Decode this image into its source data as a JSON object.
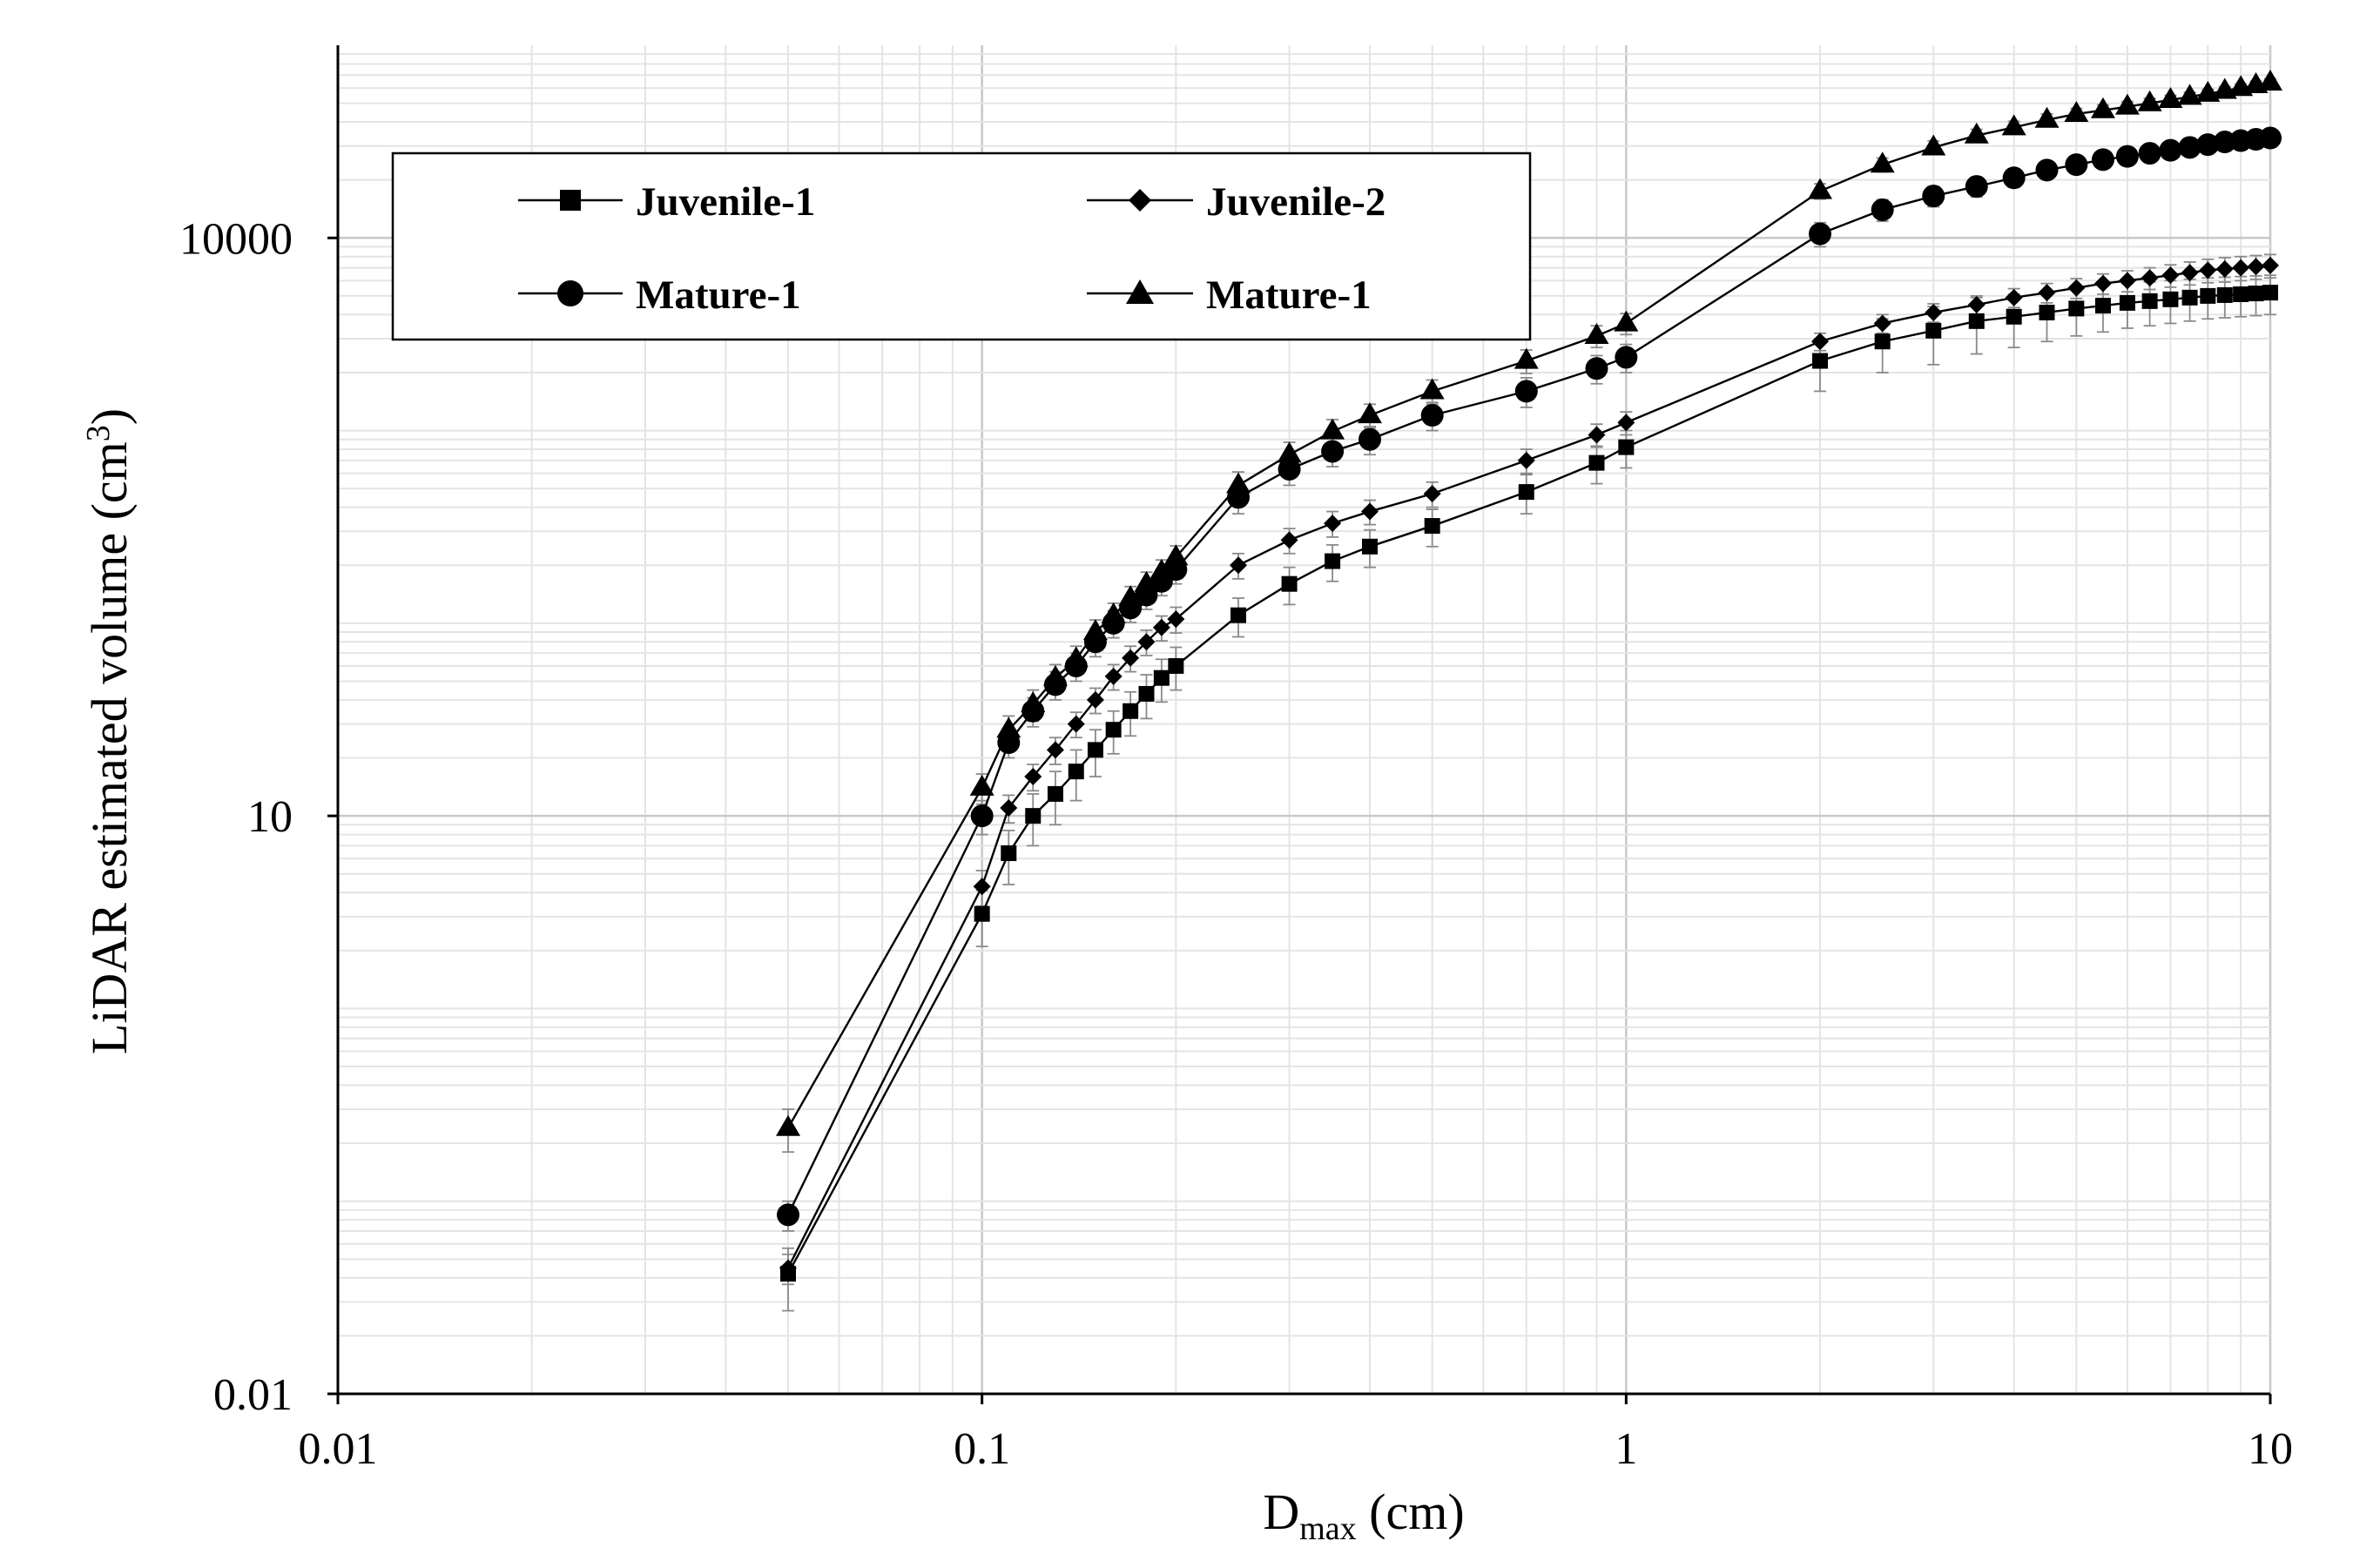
{
  "chart_data": {
    "type": "line",
    "xscale": "log",
    "yscale": "log",
    "xlim": [
      0.01,
      10
    ],
    "ylim": [
      0.01,
      100000
    ],
    "grid": true,
    "title": "",
    "xlabel_main": "D",
    "xlabel_sub": "max",
    "xlabel_rest": " (cm)",
    "ylabel_main": "LiDAR  estimated volume (cm",
    "ylabel_sup": "3",
    "ylabel_rest": ")",
    "x_ticks": [
      {
        "value": 0.01,
        "label": "0.01"
      },
      {
        "value": 0.1,
        "label": "0.1"
      },
      {
        "value": 1,
        "label": "1"
      },
      {
        "value": 10,
        "label": "10"
      }
    ],
    "y_ticks": [
      {
        "value": 0.01,
        "label": "0.01"
      },
      {
        "value": 10,
        "label": "10"
      },
      {
        "value": 10000,
        "label": "10000"
      }
    ],
    "legend_position": "top-left",
    "series": [
      {
        "name": "Juvenile-1",
        "marker": "square",
        "x": [
          0.05,
          0.1,
          0.11,
          0.12,
          0.13,
          0.14,
          0.15,
          0.16,
          0.17,
          0.18,
          0.19,
          0.2,
          0.25,
          0.3,
          0.35,
          0.4,
          0.5,
          0.7,
          0.9,
          1,
          2,
          2.5,
          3,
          3.5,
          4,
          4.5,
          5,
          5.5,
          6,
          6.5,
          7,
          7.5,
          8,
          8.5,
          9,
          9.5,
          10
        ],
        "y": [
          0.042,
          3.1,
          6.4,
          10,
          13,
          17,
          22,
          28,
          35,
          43,
          52,
          60,
          110,
          160,
          210,
          250,
          320,
          480,
          680,
          820,
          2300,
          2900,
          3300,
          3700,
          3900,
          4100,
          4300,
          4450,
          4600,
          4700,
          4800,
          4900,
          5000,
          5050,
          5100,
          5150,
          5200
        ],
        "err": [
          0.015,
          1.0,
          2.0,
          3.0,
          4.0,
          5.0,
          6.0,
          7.0,
          9.0,
          11,
          13,
          15,
          25,
          35,
          45,
          55,
          70,
          110,
          150,
          180,
          700,
          900,
          1100,
          1200,
          1200,
          1200,
          1200,
          1200,
          1200,
          1200,
          1200,
          1200,
          1200,
          1200,
          1200,
          1200,
          1200
        ]
      },
      {
        "name": "Juvenile-2",
        "marker": "diamond",
        "x": [
          0.05,
          0.1,
          0.11,
          0.12,
          0.13,
          0.14,
          0.15,
          0.16,
          0.17,
          0.18,
          0.19,
          0.2,
          0.25,
          0.3,
          0.35,
          0.4,
          0.5,
          0.7,
          0.9,
          1,
          2,
          2.5,
          3,
          3.5,
          4,
          4.5,
          5,
          5.5,
          6,
          6.5,
          7,
          7.5,
          8,
          8.5,
          9,
          9.5,
          10
        ],
        "y": [
          0.045,
          4.3,
          11,
          16,
          22,
          30,
          40,
          53,
          66,
          80,
          95,
          105,
          200,
          270,
          330,
          380,
          470,
          700,
          950,
          1100,
          2900,
          3600,
          4100,
          4500,
          4900,
          5200,
          5500,
          5800,
          6000,
          6200,
          6400,
          6600,
          6800,
          6900,
          7000,
          7100,
          7200
        ],
        "err": [
          0.008,
          0.9,
          1.8,
          2.5,
          3.5,
          4.5,
          6,
          8,
          10,
          12,
          14,
          16,
          30,
          40,
          50,
          55,
          70,
          100,
          130,
          150,
          300,
          400,
          450,
          500,
          550,
          600,
          650,
          700,
          750,
          800,
          850,
          900,
          950,
          1000,
          1000,
          1000,
          1000
        ]
      },
      {
        "name": "Mature-1",
        "marker": "circle",
        "x": [
          0.05,
          0.1,
          0.11,
          0.12,
          0.13,
          0.14,
          0.15,
          0.16,
          0.17,
          0.18,
          0.19,
          0.2,
          0.25,
          0.3,
          0.35,
          0.4,
          0.5,
          0.7,
          0.9,
          1,
          2,
          2.5,
          3,
          3.5,
          4,
          4.5,
          5,
          5.5,
          6,
          6.5,
          7,
          7.5,
          8,
          8.5,
          9,
          9.5,
          10
        ],
        "y": [
          0.085,
          10,
          24,
          35,
          48,
          60,
          80,
          100,
          120,
          140,
          165,
          190,
          450,
          630,
          780,
          900,
          1200,
          1600,
          2100,
          2400,
          10500,
          14000,
          16500,
          18500,
          20500,
          22500,
          24000,
          25500,
          26500,
          27500,
          28500,
          29500,
          30500,
          31500,
          32000,
          32500,
          33000
        ],
        "err": [
          0.015,
          2.0,
          4,
          6,
          8,
          10,
          13,
          16,
          19,
          22,
          26,
          30,
          80,
          110,
          130,
          150,
          200,
          280,
          350,
          400,
          1500,
          1800,
          2000,
          2200,
          2200,
          2200,
          2200,
          2200,
          2200,
          2200,
          2200,
          2200,
          2200,
          2200,
          2200,
          2200,
          2200
        ]
      },
      {
        "name": "Mature-1",
        "marker": "triangle",
        "x": [
          0.05,
          0.1,
          0.11,
          0.12,
          0.13,
          0.14,
          0.15,
          0.16,
          0.17,
          0.18,
          0.19,
          0.2,
          0.25,
          0.3,
          0.35,
          0.4,
          0.5,
          0.7,
          0.9,
          1,
          2,
          2.5,
          3,
          3.5,
          4,
          4.5,
          5,
          5.5,
          6,
          6.5,
          7,
          7.5,
          8,
          8.5,
          9,
          9.5,
          10
        ],
        "y": [
          0.24,
          14,
          28,
          38,
          52,
          65,
          90,
          110,
          135,
          160,
          185,
          220,
          520,
          750,
          990,
          1200,
          1600,
          2300,
          3100,
          3600,
          17500,
          24000,
          29500,
          34000,
          37500,
          41000,
          44000,
          46000,
          48000,
          50000,
          52000,
          54000,
          56000,
          58000,
          60000,
          62000,
          64000
        ],
        "err": [
          0.06,
          2.5,
          5,
          7,
          9,
          11,
          14,
          17,
          20,
          24,
          28,
          32,
          90,
          120,
          150,
          170,
          230,
          320,
          400,
          450,
          1600,
          2000,
          2400,
          2600,
          2800,
          3000,
          3000,
          3000,
          3000,
          3000,
          3000,
          3000,
          3000,
          3000,
          3000,
          3000,
          3000
        ]
      }
    ]
  }
}
